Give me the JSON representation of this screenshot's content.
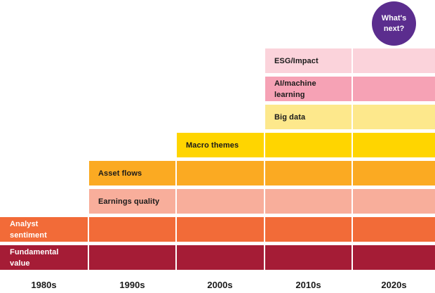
{
  "bubble": {
    "text": "What's\nnext?",
    "color": "#5b2d8e"
  },
  "decades": [
    "1980s",
    "1990s",
    "2000s",
    "2010s",
    "2020s"
  ],
  "bars": [
    {
      "label": "ESG/Impact",
      "start_decade": "2010s",
      "color": "#fbd3db",
      "text_color": "#1a1a1a"
    },
    {
      "label": "AI/machine\nlearning",
      "start_decade": "2010s",
      "color": "#f6a2b5",
      "text_color": "#1a1a1a"
    },
    {
      "label": "Big data",
      "start_decade": "2010s",
      "color": "#fde88c",
      "text_color": "#1a1a1a"
    },
    {
      "label": "Macro themes",
      "start_decade": "2000s",
      "color": "#ffd500",
      "text_color": "#1a1a1a"
    },
    {
      "label": "Asset flows",
      "start_decade": "1990s",
      "color": "#fbaa22",
      "text_color": "#1a1a1a"
    },
    {
      "label": "Earnings quality",
      "start_decade": "1990s",
      "color": "#f8ae9b",
      "text_color": "#1a1a1a"
    },
    {
      "label": "Analyst\nsentiment",
      "start_decade": "1980s",
      "color": "#f26b38",
      "text_color": "#ffffff"
    },
    {
      "label": "Fundamental\nvalue",
      "start_decade": "1980s",
      "color": "#a51c36",
      "text_color": "#ffffff"
    }
  ]
}
